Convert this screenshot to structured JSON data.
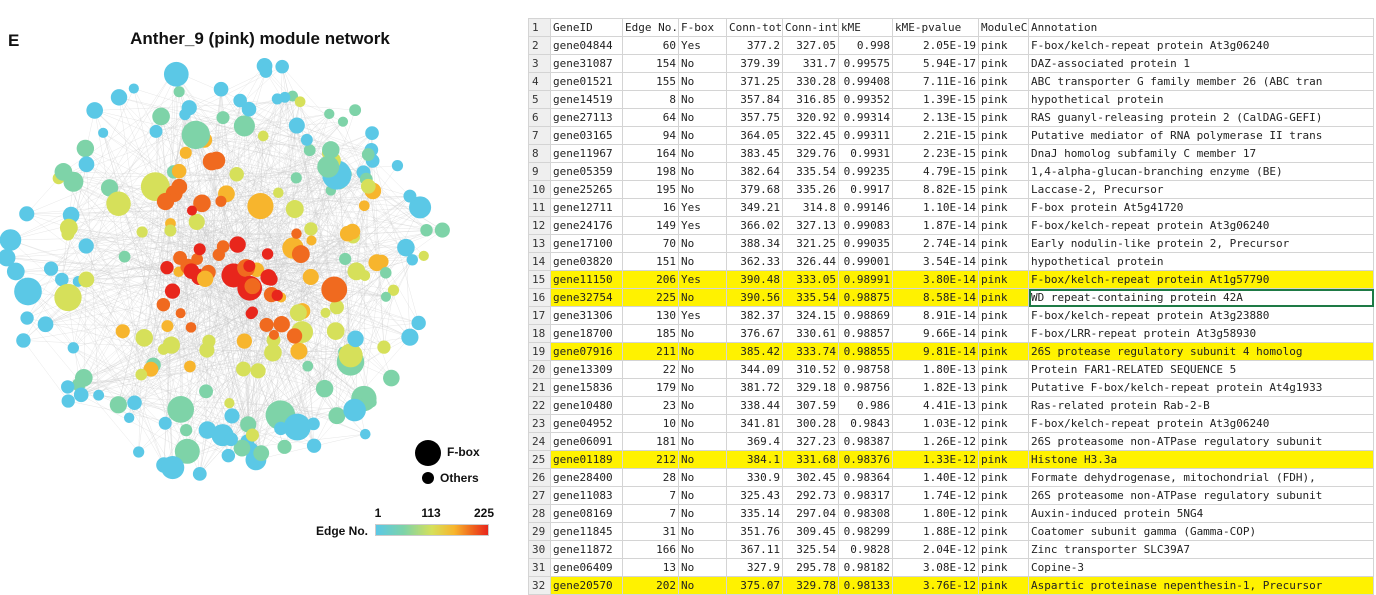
{
  "figure": {
    "panel_letter": "E",
    "title": "Anther_9 (pink) module network",
    "legend": {
      "fbox_label": "F-box",
      "others_label": "Others",
      "fbox_color": "#000000"
    },
    "colorbar": {
      "title": "Edge No.",
      "min_label": "1",
      "mid_label": "113",
      "max_label": "225",
      "colors": [
        "#5bc8e6",
        "#7ed3a8",
        "#d6e05a",
        "#f7b52d",
        "#f06a1f",
        "#e8261c"
      ]
    },
    "edge_color": "#c8c8c8"
  },
  "sheet": {
    "highlight_color": "#fff200",
    "header": {
      "num": "1",
      "cells": [
        "GeneID",
        "Edge No.",
        "F-box",
        "Conn-tota",
        "Conn-int",
        "kME",
        "kME-pvalue",
        "ModuleCc",
        "Annotation"
      ]
    },
    "rows": [
      {
        "num": "2",
        "cells": [
          "gene04844",
          "60",
          "Yes",
          "377.2",
          "327.05",
          "0.998",
          "2.05E-19",
          "pink",
          "F-box/kelch-repeat protein At3g06240"
        ]
      },
      {
        "num": "3",
        "cells": [
          "gene31087",
          "154",
          "No",
          "379.39",
          "331.7",
          "0.99575",
          "5.94E-17",
          "pink",
          "DAZ-associated protein 1"
        ]
      },
      {
        "num": "4",
        "cells": [
          "gene01521",
          "155",
          "No",
          "371.25",
          "330.28",
          "0.99408",
          "7.11E-16",
          "pink",
          "ABC transporter G family member 26 (ABC tran"
        ]
      },
      {
        "num": "5",
        "cells": [
          "gene14519",
          "8",
          "No",
          "357.84",
          "316.85",
          "0.99352",
          "1.39E-15",
          "pink",
          "hypothetical protein"
        ]
      },
      {
        "num": "6",
        "cells": [
          "gene27113",
          "64",
          "No",
          "357.75",
          "320.92",
          "0.99314",
          "2.13E-15",
          "pink",
          "RAS guanyl-releasing protein 2 (CalDAG-GEFI)"
        ]
      },
      {
        "num": "7",
        "cells": [
          "gene03165",
          "94",
          "No",
          "364.05",
          "322.45",
          "0.99311",
          "2.21E-15",
          "pink",
          "Putative mediator of RNA polymerase II trans"
        ]
      },
      {
        "num": "8",
        "cells": [
          "gene11967",
          "164",
          "No",
          "383.45",
          "329.76",
          "0.9931",
          "2.23E-15",
          "pink",
          "DnaJ homolog subfamily C member 17"
        ]
      },
      {
        "num": "9",
        "cells": [
          "gene05359",
          "198",
          "No",
          "382.64",
          "335.54",
          "0.99235",
          "4.79E-15",
          "pink",
          "1,4-alpha-glucan-branching enzyme (BE)"
        ]
      },
      {
        "num": "10",
        "cells": [
          "gene25265",
          "195",
          "No",
          "379.68",
          "335.26",
          "0.9917",
          "8.82E-15",
          "pink",
          "Laccase-2, Precursor"
        ]
      },
      {
        "num": "11",
        "cells": [
          "gene12711",
          "16",
          "Yes",
          "349.21",
          "314.8",
          "0.99146",
          "1.10E-14",
          "pink",
          "F-box protein At5g41720"
        ]
      },
      {
        "num": "12",
        "cells": [
          "gene24176",
          "149",
          "Yes",
          "366.02",
          "327.13",
          "0.99083",
          "1.87E-14",
          "pink",
          "F-box/kelch-repeat protein At3g06240"
        ]
      },
      {
        "num": "13",
        "cells": [
          "gene17100",
          "70",
          "No",
          "388.34",
          "321.25",
          "0.99035",
          "2.74E-14",
          "pink",
          "Early nodulin-like protein 2, Precursor"
        ]
      },
      {
        "num": "14",
        "cells": [
          "gene03820",
          "151",
          "No",
          "362.33",
          "326.44",
          "0.99001",
          "3.54E-14",
          "pink",
          "hypothetical protein"
        ]
      },
      {
        "num": "15",
        "hl": true,
        "cells": [
          "gene11150",
          "206",
          "Yes",
          "390.48",
          "333.05",
          "0.98991",
          "3.80E-14",
          "pink",
          "F-box/kelch-repeat protein At1g57790"
        ]
      },
      {
        "num": "16",
        "hl": true,
        "sel": 8,
        "cells": [
          "gene32754",
          "225",
          "No",
          "390.56",
          "335.54",
          "0.98875",
          "8.58E-14",
          "pink",
          "WD repeat-containing protein 42A"
        ]
      },
      {
        "num": "17",
        "cells": [
          "gene31306",
          "130",
          "Yes",
          "382.37",
          "324.15",
          "0.98869",
          "8.91E-14",
          "pink",
          "F-box/kelch-repeat protein At3g23880"
        ]
      },
      {
        "num": "18",
        "cells": [
          "gene18700",
          "185",
          "No",
          "376.67",
          "330.61",
          "0.98857",
          "9.66E-14",
          "pink",
          "F-box/LRR-repeat protein At3g58930"
        ]
      },
      {
        "num": "19",
        "hl": true,
        "cells": [
          "gene07916",
          "211",
          "No",
          "385.42",
          "333.74",
          "0.98855",
          "9.81E-14",
          "pink",
          "26S protease regulatory subunit 4 homolog"
        ]
      },
      {
        "num": "20",
        "cells": [
          "gene13309",
          "22",
          "No",
          "344.09",
          "310.52",
          "0.98758",
          "1.80E-13",
          "pink",
          "Protein FAR1-RELATED SEQUENCE 5"
        ]
      },
      {
        "num": "21",
        "cells": [
          "gene15836",
          "179",
          "No",
          "381.72",
          "329.18",
          "0.98756",
          "1.82E-13",
          "pink",
          "Putative F-box/kelch-repeat protein At4g1933"
        ]
      },
      {
        "num": "22",
        "cells": [
          "gene10480",
          "23",
          "No",
          "338.44",
          "307.59",
          "0.986",
          "4.41E-13",
          "pink",
          "Ras-related protein Rab-2-B"
        ]
      },
      {
        "num": "23",
        "cells": [
          "gene04952",
          "10",
          "No",
          "341.81",
          "300.28",
          "0.9843",
          "1.03E-12",
          "pink",
          "F-box/kelch-repeat protein At3g06240"
        ]
      },
      {
        "num": "24",
        "cells": [
          "gene06091",
          "181",
          "No",
          "369.4",
          "327.23",
          "0.98387",
          "1.26E-12",
          "pink",
          "26S proteasome non-ATPase regulatory subunit"
        ]
      },
      {
        "num": "25",
        "hl": true,
        "cells": [
          "gene01189",
          "212",
          "No",
          "384.1",
          "331.68",
          "0.98376",
          "1.33E-12",
          "pink",
          "Histone H3.3a"
        ]
      },
      {
        "num": "26",
        "cells": [
          "gene28400",
          "28",
          "No",
          "330.9",
          "302.45",
          "0.98364",
          "1.40E-12",
          "pink",
          "Formate dehydrogenase, mitochondrial (FDH),"
        ]
      },
      {
        "num": "27",
        "cells": [
          "gene11083",
          "7",
          "No",
          "325.43",
          "292.73",
          "0.98317",
          "1.74E-12",
          "pink",
          "26S proteasome non-ATPase regulatory subunit"
        ]
      },
      {
        "num": "28",
        "cells": [
          "gene08169",
          "7",
          "No",
          "335.14",
          "297.04",
          "0.98308",
          "1.80E-12",
          "pink",
          "Auxin-induced protein 5NG4"
        ]
      },
      {
        "num": "29",
        "cells": [
          "gene11845",
          "31",
          "No",
          "351.76",
          "309.45",
          "0.98299",
          "1.88E-12",
          "pink",
          "Coatomer subunit gamma (Gamma-COP)"
        ]
      },
      {
        "num": "30",
        "cells": [
          "gene11872",
          "166",
          "No",
          "367.11",
          "325.54",
          "0.9828",
          "2.04E-12",
          "pink",
          "Zinc transporter SLC39A7"
        ]
      },
      {
        "num": "31",
        "cells": [
          "gene06409",
          "13",
          "No",
          "327.9",
          "295.78",
          "0.98182",
          "3.08E-12",
          "pink",
          "Copine-3"
        ]
      },
      {
        "num": "32",
        "hl": true,
        "cells": [
          "gene20570",
          "202",
          "No",
          "375.07",
          "329.78",
          "0.98133",
          "3.76E-12",
          "pink",
          "Aspartic proteinase nepenthesin-1, Precursor"
        ]
      }
    ]
  }
}
